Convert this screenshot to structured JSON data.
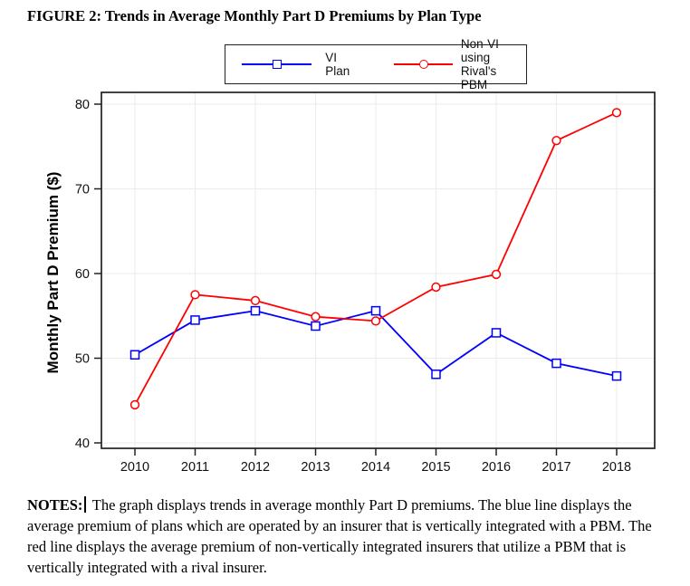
{
  "title": "FIGURE 2: Trends in Average Monthly Part D Premiums by Plan Type",
  "legend": {
    "items": [
      {
        "label": "VI Plan",
        "color": "#0000ff",
        "marker": "square"
      },
      {
        "label": "Non-VI using\nRival's PBM",
        "color": "#ff0000",
        "marker": "circle"
      }
    ]
  },
  "chart_data": {
    "type": "line",
    "title": "",
    "xlabel": "",
    "ylabel": "Monthly Part D Premium ($)",
    "x": [
      2010,
      2011,
      2012,
      2013,
      2014,
      2015,
      2016,
      2017,
      2018
    ],
    "series": [
      {
        "name": "VI Plan",
        "color": "#0000ff",
        "marker": "square",
        "values": [
          50.4,
          54.5,
          55.6,
          53.8,
          55.6,
          48.1,
          53.0,
          49.4,
          47.9
        ]
      },
      {
        "name": "Non-VI using Rival's PBM",
        "color": "#ff0000",
        "marker": "circle",
        "values": [
          44.5,
          57.5,
          56.8,
          54.9,
          54.4,
          58.4,
          59.9,
          75.7,
          79.0
        ]
      }
    ],
    "ylim": [
      40,
      80
    ],
    "yticks": [
      40,
      50,
      60,
      70,
      80
    ],
    "grid": true,
    "gridline_color": "#ebebeb",
    "legend_position": "top-center"
  },
  "notes": {
    "label": "NOTES:",
    "body": "The graph displays trends in average monthly Part D premiums. The blue line displays the average premium of plans which are operated by an insurer that is vertically integrated with a PBM. The red line displays the average premium of non-vertically integrated insurers that utilize a PBM that is vertically integrated with a rival insurer."
  }
}
